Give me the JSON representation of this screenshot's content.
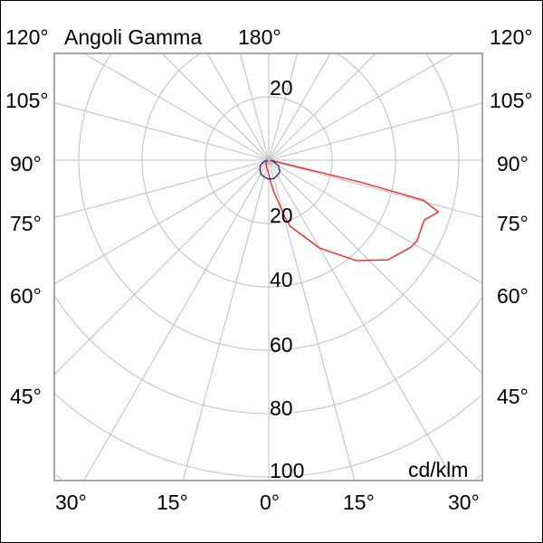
{
  "chart_data": {
    "type": "polar",
    "title": "Angoli Gamma",
    "unit_label": "cd/klm",
    "radial_ticks": [
      20,
      40,
      60,
      80,
      100
    ],
    "radial_top_tick": "20",
    "radial_max": 100,
    "angle_step_deg": 15,
    "grid": true,
    "angle_labels": {
      "top_left": "120°",
      "top_center": "180°",
      "top_right": "120°",
      "left": [
        "105°",
        "90°",
        "75°",
        "60°",
        "45°"
      ],
      "right": [
        "105°",
        "90°",
        "75°",
        "60°",
        "45°"
      ],
      "bottom": [
        "30°",
        "15°",
        "0°",
        "15°",
        "30°"
      ]
    },
    "series": [
      {
        "color": "#ff2020",
        "gamma": [
          -90,
          -45,
          -20,
          0,
          5,
          9,
          16,
          18,
          30,
          41,
          50,
          58.5,
          61.5,
          66.5,
          69,
          73,
          75.5,
          76.5,
          79,
          85,
          90
        ],
        "values": [
          0.3,
          1.3,
          2.2,
          4.3,
          7,
          10,
          19,
          22,
          32,
          42,
          49,
          52.6,
          53.3,
          52.7,
          52.6,
          56,
          50.5,
          30,
          2,
          1.5,
          1.2
        ]
      },
      {
        "color": "#2b2b90",
        "gamma": [
          -90,
          -75,
          -60,
          -45,
          -30,
          -15,
          0,
          15,
          30,
          45,
          60,
          75,
          90
        ],
        "values": [
          0.5,
          1.5,
          3,
          4,
          5,
          5.5,
          6,
          6,
          5.5,
          5,
          3.5,
          1.5,
          0.5
        ]
      }
    ]
  }
}
